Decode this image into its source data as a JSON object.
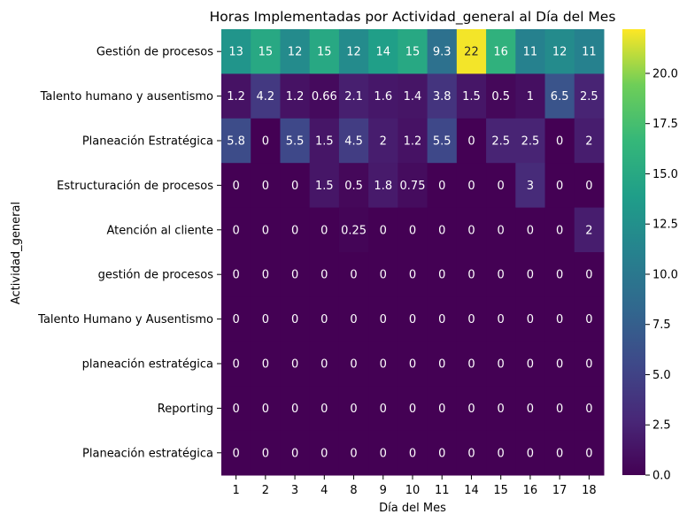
{
  "chart_data": {
    "type": "heatmap",
    "title": "Horas Implementadas por Actividad_general al Día del Mes",
    "xlabel": "Día del Mes",
    "ylabel": "Actividad_general",
    "columns": [
      "1",
      "2",
      "3",
      "4",
      "8",
      "9",
      "10",
      "11",
      "14",
      "15",
      "16",
      "17",
      "18"
    ],
    "rows": [
      "Gestión de procesos",
      "Talento humano y ausentismo",
      "Planeación Estratégica",
      "Estructuración de procesos",
      "Atención al cliente",
      "gestión de procesos",
      "Talento Humano y Ausentismo",
      "planeación estratégica",
      "Reporting",
      "Planeación estratégica"
    ],
    "values": [
      [
        13,
        15,
        12,
        15,
        12,
        14,
        15,
        9.3,
        22,
        16,
        11,
        12,
        11
      ],
      [
        1.2,
        4.2,
        1.2,
        0.66,
        2.1,
        1.6,
        1.4,
        3.8,
        1.5,
        0.5,
        1,
        6.5,
        2.5
      ],
      [
        5.8,
        0,
        5.5,
        1.5,
        4.5,
        2,
        1.2,
        5.5,
        0,
        2.5,
        2.5,
        0,
        2
      ],
      [
        0,
        0,
        0,
        1.5,
        0.5,
        1.8,
        0.75,
        0,
        0,
        0,
        3,
        0,
        0
      ],
      [
        0,
        0,
        0,
        0,
        0.25,
        0,
        0,
        0,
        0,
        0,
        0,
        0,
        2
      ],
      [
        0,
        0,
        0,
        0,
        0,
        0,
        0,
        0,
        0,
        0,
        0,
        0,
        0
      ],
      [
        0,
        0,
        0,
        0,
        0,
        0,
        0,
        0,
        0,
        0,
        0,
        0,
        0
      ],
      [
        0,
        0,
        0,
        0,
        0,
        0,
        0,
        0,
        0,
        0,
        0,
        0,
        0
      ],
      [
        0,
        0,
        0,
        0,
        0,
        0,
        0,
        0,
        0,
        0,
        0,
        0,
        0
      ],
      [
        0,
        0,
        0,
        0,
        0,
        0,
        0,
        0,
        0,
        0,
        0,
        0,
        0
      ]
    ],
    "colormap": "viridis",
    "vmin": 0,
    "vmax": 22.2,
    "colorbar_ticks": [
      "0.0",
      "2.5",
      "5.0",
      "7.5",
      "10.0",
      "12.5",
      "15.0",
      "17.5",
      "20.0"
    ]
  }
}
